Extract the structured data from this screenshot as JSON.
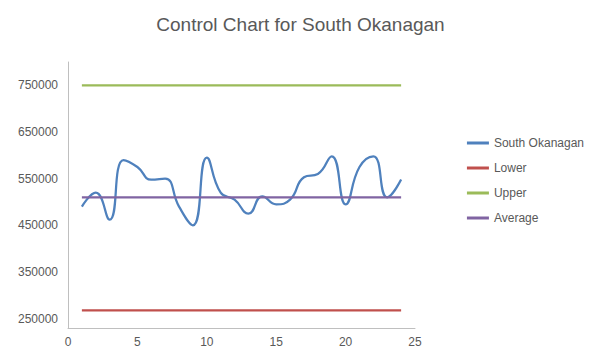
{
  "chart_data": {
    "type": "line",
    "title": "Control Chart for South Okanagan",
    "x": [
      1,
      2,
      3,
      4,
      5,
      6,
      7,
      8,
      9,
      10,
      11,
      12,
      13,
      14,
      15,
      16,
      17,
      18,
      19,
      20,
      21,
      22,
      23,
      24
    ],
    "series": [
      {
        "name": "South Okanagan",
        "color": "#4f81bd",
        "line_style": "smooth",
        "values": [
          490000,
          520000,
          462000,
          590000,
          575000,
          548000,
          550000,
          490000,
          450000,
          595000,
          520000,
          505000,
          475000,
          512000,
          495000,
          505000,
          553000,
          560000,
          598000,
          495000,
          575000,
          598000,
          510000,
          548000
        ]
      },
      {
        "name": "Lower",
        "color": "#c0504d",
        "line_style": "solid",
        "values": [
          268000,
          268000,
          268000,
          268000,
          268000,
          268000,
          268000,
          268000,
          268000,
          268000,
          268000,
          268000,
          268000,
          268000,
          268000,
          268000,
          268000,
          268000,
          268000,
          268000,
          268000,
          268000,
          268000,
          268000
        ]
      },
      {
        "name": "Upper",
        "color": "#9bbb59",
        "line_style": "solid",
        "values": [
          750000,
          750000,
          750000,
          750000,
          750000,
          750000,
          750000,
          750000,
          750000,
          750000,
          750000,
          750000,
          750000,
          750000,
          750000,
          750000,
          750000,
          750000,
          750000,
          750000,
          750000,
          750000,
          750000,
          750000
        ]
      },
      {
        "name": "Average",
        "color": "#8064a2",
        "line_style": "solid",
        "values": [
          510000,
          510000,
          510000,
          510000,
          510000,
          510000,
          510000,
          510000,
          510000,
          510000,
          510000,
          510000,
          510000,
          510000,
          510000,
          510000,
          510000,
          510000,
          510000,
          510000,
          510000,
          510000,
          510000,
          510000
        ]
      }
    ],
    "xlim": [
      0,
      25
    ],
    "xticks": [
      0,
      5,
      10,
      15,
      20,
      25
    ],
    "ylim": [
      230000,
      800000
    ],
    "yticks": [
      250000,
      350000,
      450000,
      550000,
      650000,
      750000
    ],
    "grid": false,
    "legend": "right",
    "marker": "none"
  }
}
